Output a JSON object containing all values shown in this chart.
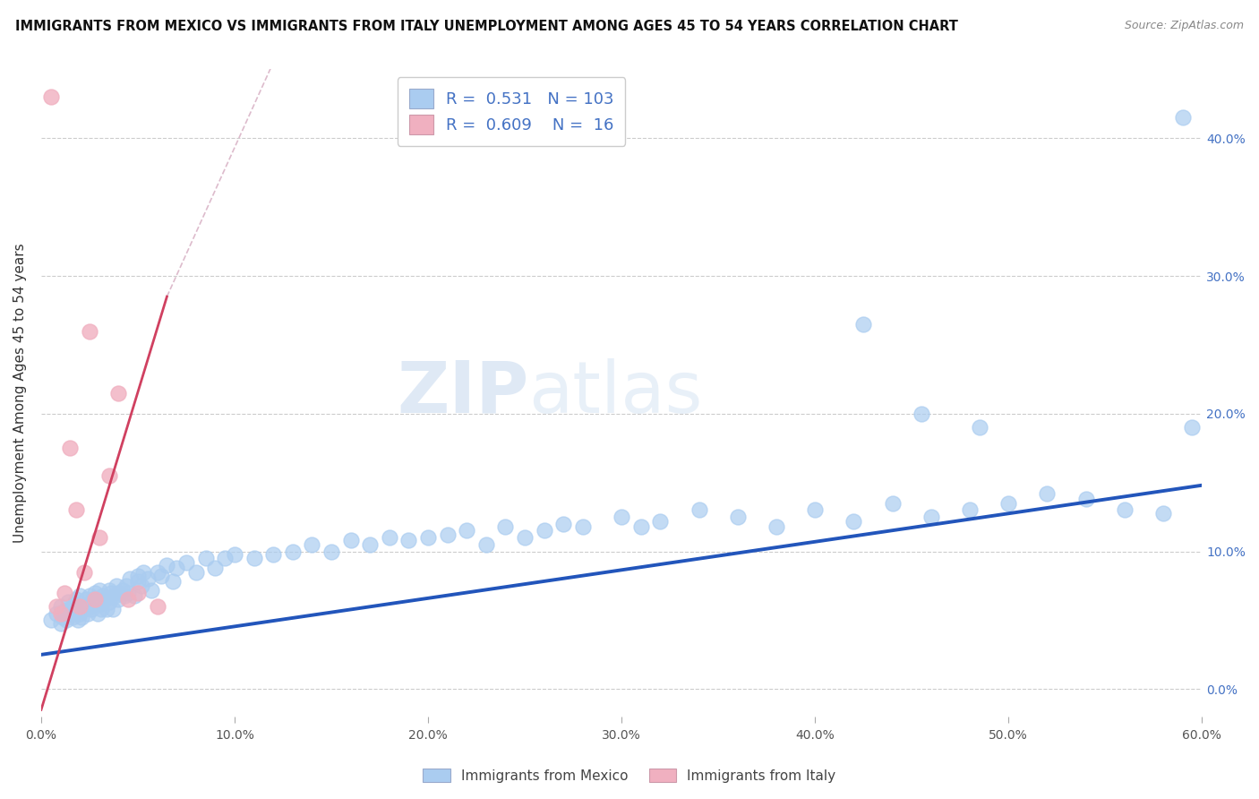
{
  "title": "IMMIGRANTS FROM MEXICO VS IMMIGRANTS FROM ITALY UNEMPLOYMENT AMONG AGES 45 TO 54 YEARS CORRELATION CHART",
  "source": "Source: ZipAtlas.com",
  "ylabel": "Unemployment Among Ages 45 to 54 years",
  "xlim": [
    0.0,
    0.6
  ],
  "ylim": [
    -0.02,
    0.45
  ],
  "ylim_display": [
    0.0,
    0.45
  ],
  "xticks": [
    0.0,
    0.1,
    0.2,
    0.3,
    0.4,
    0.5,
    0.6
  ],
  "yticks": [
    0.0,
    0.1,
    0.2,
    0.3,
    0.4
  ],
  "r_mexico": 0.531,
  "n_mexico": 103,
  "r_italy": 0.609,
  "n_italy": 16,
  "color_mexico": "#aaccf0",
  "color_italy": "#f0b0c0",
  "color_mexico_line": "#2255bb",
  "color_italy_line": "#d04060",
  "color_italy_dash": "#ddbbcc",
  "watermark_zip": "ZIP",
  "watermark_atlas": "atlas",
  "legend_label_mexico": "Immigrants from Mexico",
  "legend_label_italy": "Immigrants from Italy",
  "mexico_x": [
    0.005,
    0.008,
    0.01,
    0.01,
    0.011,
    0.012,
    0.013,
    0.014,
    0.015,
    0.015,
    0.016,
    0.017,
    0.018,
    0.018,
    0.019,
    0.02,
    0.02,
    0.021,
    0.022,
    0.023,
    0.024,
    0.025,
    0.025,
    0.026,
    0.027,
    0.028,
    0.029,
    0.03,
    0.03,
    0.031,
    0.032,
    0.033,
    0.034,
    0.035,
    0.035,
    0.036,
    0.037,
    0.038,
    0.039,
    0.04,
    0.04,
    0.042,
    0.043,
    0.044,
    0.045,
    0.046,
    0.048,
    0.05,
    0.05,
    0.052,
    0.053,
    0.055,
    0.057,
    0.06,
    0.062,
    0.065,
    0.068,
    0.07,
    0.075,
    0.08,
    0.085,
    0.09,
    0.095,
    0.1,
    0.11,
    0.12,
    0.13,
    0.14,
    0.15,
    0.16,
    0.17,
    0.18,
    0.19,
    0.2,
    0.21,
    0.22,
    0.23,
    0.24,
    0.25,
    0.26,
    0.27,
    0.28,
    0.3,
    0.31,
    0.32,
    0.34,
    0.36,
    0.38,
    0.4,
    0.42,
    0.44,
    0.46,
    0.48,
    0.5,
    0.52,
    0.54,
    0.56,
    0.58,
    0.59,
    0.595,
    0.425,
    0.455,
    0.485
  ],
  "mexico_y": [
    0.05,
    0.055,
    0.048,
    0.06,
    0.052,
    0.057,
    0.05,
    0.063,
    0.055,
    0.058,
    0.052,
    0.062,
    0.058,
    0.065,
    0.05,
    0.055,
    0.068,
    0.052,
    0.058,
    0.065,
    0.055,
    0.06,
    0.068,
    0.058,
    0.065,
    0.07,
    0.055,
    0.062,
    0.072,
    0.058,
    0.068,
    0.065,
    0.058,
    0.072,
    0.063,
    0.07,
    0.058,
    0.068,
    0.075,
    0.065,
    0.07,
    0.072,
    0.068,
    0.075,
    0.07,
    0.08,
    0.068,
    0.078,
    0.082,
    0.075,
    0.085,
    0.08,
    0.072,
    0.085,
    0.082,
    0.09,
    0.078,
    0.088,
    0.092,
    0.085,
    0.095,
    0.088,
    0.095,
    0.098,
    0.095,
    0.098,
    0.1,
    0.105,
    0.1,
    0.108,
    0.105,
    0.11,
    0.108,
    0.11,
    0.112,
    0.115,
    0.105,
    0.118,
    0.11,
    0.115,
    0.12,
    0.118,
    0.125,
    0.118,
    0.122,
    0.13,
    0.125,
    0.118,
    0.13,
    0.122,
    0.135,
    0.125,
    0.13,
    0.135,
    0.142,
    0.138,
    0.13,
    0.128,
    0.415,
    0.19,
    0.265,
    0.2,
    0.19
  ],
  "italy_x": [
    0.005,
    0.008,
    0.01,
    0.012,
    0.015,
    0.018,
    0.02,
    0.022,
    0.025,
    0.028,
    0.03,
    0.035,
    0.04,
    0.045,
    0.05,
    0.06
  ],
  "italy_y": [
    0.43,
    0.06,
    0.055,
    0.07,
    0.175,
    0.13,
    0.06,
    0.085,
    0.26,
    0.065,
    0.11,
    0.155,
    0.215,
    0.065,
    0.07,
    0.06
  ],
  "mexico_trend": [
    0.0,
    0.025,
    0.6,
    0.148
  ],
  "italy_trend_solid": [
    0.0,
    -0.015,
    0.065,
    0.285
  ],
  "italy_trend_dash": [
    0.065,
    0.285,
    0.28,
    0.95
  ]
}
